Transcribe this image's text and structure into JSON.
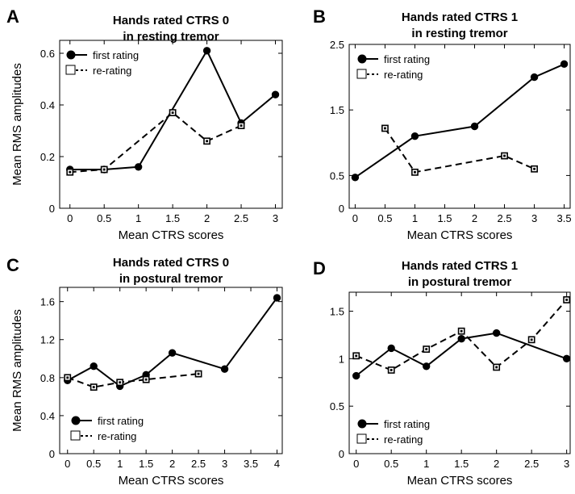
{
  "chart_data": [
    {
      "panel": "A",
      "type": "line",
      "title": [
        "Hands rated CTRS 0",
        "in resting tremor"
      ],
      "xlabel": "Mean CTRS scores",
      "ylabel": "Mean RMS amplitudes",
      "xlim": [
        -0.15,
        3.1
      ],
      "ylim": [
        0,
        0.65
      ],
      "xticks": [
        0,
        0.5,
        1,
        1.5,
        2,
        2.5,
        3
      ],
      "yticks": [
        0,
        0.2,
        0.4,
        0.6
      ],
      "legend": "top-left",
      "series": [
        {
          "name": "first rating",
          "marker": "circle",
          "dash": "solid",
          "x": [
            0,
            0.5,
            1,
            2,
            2.5,
            3
          ],
          "y": [
            0.15,
            0.15,
            0.16,
            0.61,
            0.33,
            0.44
          ]
        },
        {
          "name": "re-rating",
          "marker": "square",
          "dash": "dashed",
          "x": [
            0,
            0.5,
            1.5,
            2,
            2.5
          ],
          "y": [
            0.14,
            0.15,
            0.37,
            0.26,
            0.32
          ]
        }
      ]
    },
    {
      "panel": "B",
      "type": "line",
      "title": [
        "Hands rated CTRS 1",
        "in resting tremor"
      ],
      "xlabel": "Mean CTRS scores",
      "ylabel": "",
      "xlim": [
        -0.1,
        3.6
      ],
      "ylim": [
        0,
        2.5
      ],
      "xticks": [
        0,
        0.5,
        1,
        1.5,
        2,
        2.5,
        3,
        3.5
      ],
      "yticks": [
        0,
        0.5,
        1.5,
        2.5
      ],
      "legend": "top-left",
      "series": [
        {
          "name": "first rating",
          "marker": "circle",
          "dash": "solid",
          "x": [
            0,
            1,
            2,
            3,
            3.5
          ],
          "y": [
            0.47,
            1.1,
            1.25,
            2.0,
            2.2
          ]
        },
        {
          "name": "re-rating",
          "marker": "square",
          "dash": "dashed",
          "x": [
            0.5,
            1,
            2.5,
            3
          ],
          "y": [
            1.22,
            0.55,
            0.8,
            0.6
          ]
        }
      ]
    },
    {
      "panel": "C",
      "type": "line",
      "title": [
        "Hands rated CTRS 0",
        "in postural tremor"
      ],
      "xlabel": "Mean CTRS scores",
      "ylabel": "Mean RMS amplitudes",
      "xlim": [
        -0.15,
        4.1
      ],
      "ylim": [
        0,
        1.75
      ],
      "xticks": [
        0,
        0.5,
        1,
        1.5,
        2,
        2.5,
        3,
        3.5,
        4
      ],
      "yticks": [
        0,
        0.4,
        0.8,
        1.2,
        1.6
      ],
      "legend": "bottom-left",
      "series": [
        {
          "name": "first rating",
          "marker": "circle",
          "dash": "solid",
          "x": [
            0,
            0.5,
            1,
            1.5,
            2,
            3,
            4
          ],
          "y": [
            0.77,
            0.92,
            0.71,
            0.83,
            1.06,
            0.89,
            1.64
          ]
        },
        {
          "name": "re-rating",
          "marker": "square",
          "dash": "dashed",
          "x": [
            0,
            0.5,
            1,
            1.5,
            2.5
          ],
          "y": [
            0.8,
            0.7,
            0.75,
            0.78,
            0.84
          ]
        }
      ]
    },
    {
      "panel": "D",
      "type": "line",
      "title": [
        "Hands rated CTRS 1",
        "in postural tremor"
      ],
      "xlabel": "Mean CTRS scores",
      "ylabel": "",
      "xlim": [
        -0.1,
        3.05
      ],
      "ylim": [
        0,
        1.7
      ],
      "xticks": [
        0,
        0.5,
        1,
        1.5,
        2,
        2.5,
        3
      ],
      "yticks": [
        0,
        0.5,
        1.0,
        1.5
      ],
      "legend": "bottom-left",
      "series": [
        {
          "name": "first rating",
          "marker": "circle",
          "dash": "solid",
          "x": [
            0,
            0.5,
            1,
            1.5,
            2,
            3
          ],
          "y": [
            0.82,
            1.11,
            0.92,
            1.21,
            1.27,
            1.0
          ]
        },
        {
          "name": "re-rating",
          "marker": "square",
          "dash": "dashed",
          "x": [
            0,
            0.5,
            1,
            1.5,
            2,
            2.5,
            3
          ],
          "y": [
            1.03,
            0.88,
            1.1,
            1.29,
            0.91,
            1.2,
            1.62
          ]
        }
      ]
    }
  ]
}
